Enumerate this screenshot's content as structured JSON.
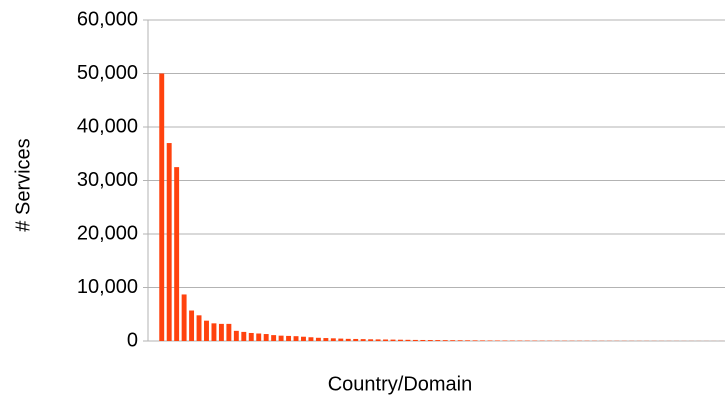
{
  "chart_data": {
    "type": "bar",
    "x_label": "Country/Domain",
    "y_label": "# Services",
    "categories": [
      null,
      null,
      null,
      null,
      null,
      null,
      null,
      null,
      null,
      null,
      null,
      null,
      null,
      null,
      null,
      null,
      null,
      null,
      null,
      null,
      null,
      null,
      null,
      null,
      null,
      null,
      null,
      null,
      null,
      null,
      null,
      null,
      null,
      null,
      null,
      null,
      null,
      null,
      null,
      null,
      null,
      null,
      null,
      null,
      null,
      null,
      null,
      null,
      null,
      null,
      null,
      null,
      null,
      null,
      null,
      null,
      null,
      null,
      null,
      null,
      null,
      null,
      null,
      null,
      null,
      null,
      null,
      null,
      null,
      null,
      null,
      null,
      null,
      null,
      null,
      null
    ],
    "values": [
      50000,
      37000,
      32500,
      8700,
      5700,
      4800,
      3800,
      3300,
      3200,
      3200,
      1900,
      1700,
      1500,
      1400,
      1300,
      1100,
      1000,
      950,
      900,
      800,
      700,
      600,
      550,
      500,
      450,
      400,
      380,
      350,
      320,
      300,
      280,
      260,
      240,
      220,
      200,
      190,
      180,
      170,
      160,
      150,
      140,
      130,
      120,
      110,
      100,
      95,
      90,
      85,
      80,
      75,
      70,
      65,
      60,
      58,
      55,
      52,
      50,
      48,
      45,
      42,
      40,
      38,
      36,
      34,
      32,
      30,
      28,
      26,
      24,
      22,
      20,
      18,
      16,
      14,
      12,
      10
    ],
    "color": "#ff420e",
    "ylim": [
      0,
      60000
    ],
    "yticks": [
      0,
      {
        "value": 10000,
        "label": "10,000"
      },
      {
        "value": 20000,
        "label": "20,000"
      },
      {
        "value": 30000,
        "label": "30,000"
      },
      {
        "value": 40000,
        "label": "40,000"
      },
      {
        "value": 50000,
        "label": "50,000"
      },
      {
        "value": 60000,
        "label": "60,000"
      }
    ],
    "grid": true
  }
}
